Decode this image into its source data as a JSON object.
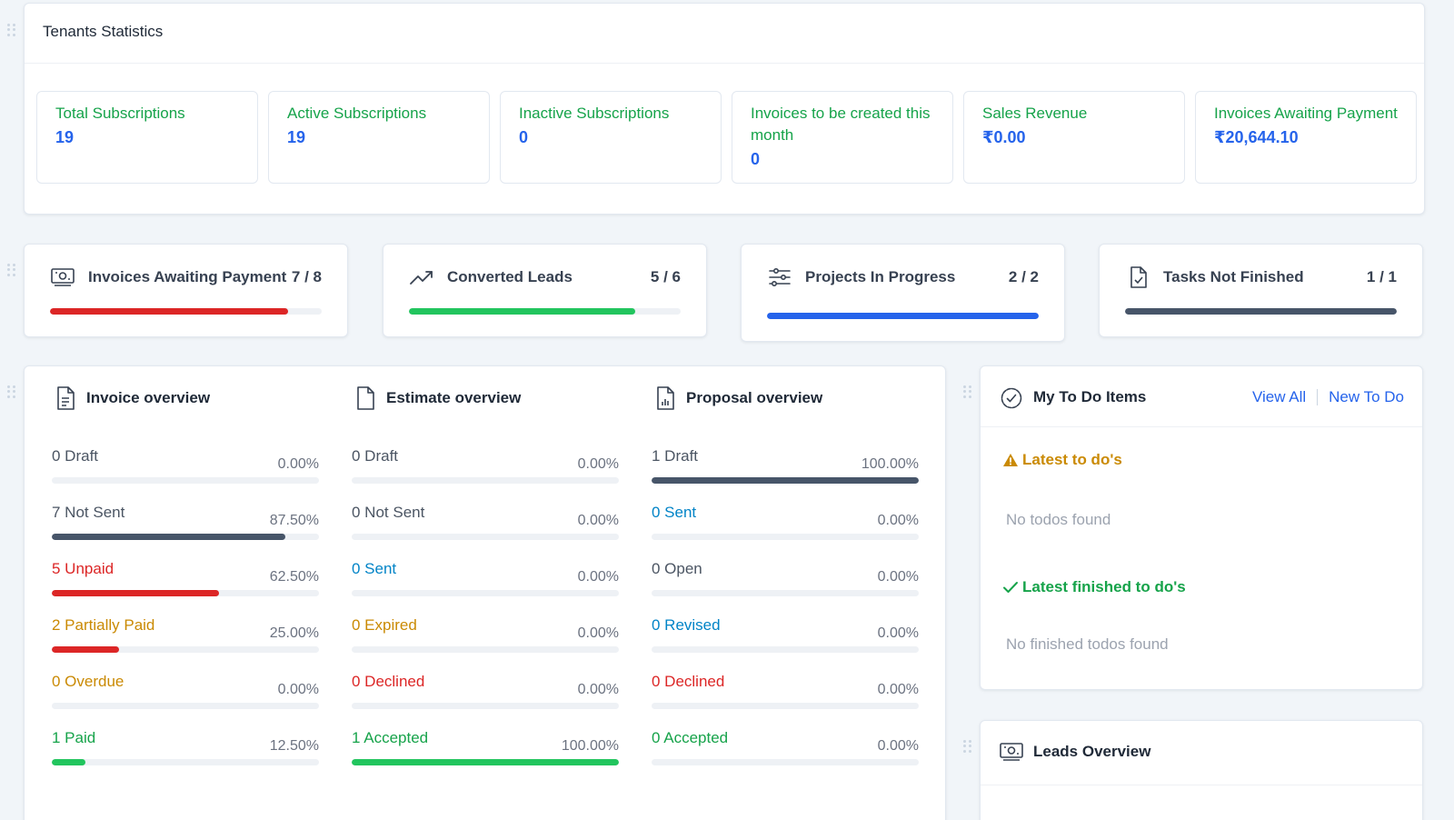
{
  "tenants": {
    "title": "Tenants Statistics",
    "stats": [
      {
        "label": "Total Subscriptions",
        "value": "19"
      },
      {
        "label": "Active Subscriptions",
        "value": "19"
      },
      {
        "label": "Inactive Subscriptions",
        "value": "0"
      },
      {
        "label": "Invoices to be created this month",
        "value": "0"
      },
      {
        "label": "Sales Revenue",
        "value": "₹0.00"
      },
      {
        "label": "Invoices Awaiting Payment",
        "value": "₹20,644.10"
      }
    ]
  },
  "progress_cards": [
    {
      "label": "Invoices Awaiting Payment",
      "count": "7 / 8",
      "fraction": 0.875,
      "color": "#dc2626",
      "icon": "money-icon"
    },
    {
      "label": "Converted Leads",
      "count": "5 / 6",
      "fraction": 0.833,
      "color": "#22c55e",
      "icon": "trending-up-icon"
    },
    {
      "label": "Projects In Progress",
      "count": "2 / 2",
      "fraction": 1.0,
      "color": "#2563eb",
      "icon": "sliders-icon"
    },
    {
      "label": "Tasks Not Finished",
      "count": "1 / 1",
      "fraction": 1.0,
      "color": "#475569",
      "icon": "document-check-icon"
    }
  ],
  "overview": {
    "invoice": {
      "title": "Invoice overview",
      "rows": [
        {
          "label": "0 Draft",
          "pct": "0.00%",
          "fraction": 0,
          "color": "#4b5563",
          "bar": "#475569"
        },
        {
          "label": "7 Not Sent",
          "pct": "87.50%",
          "fraction": 0.875,
          "color": "#4b5563",
          "bar": "#475569"
        },
        {
          "label": "5 Unpaid",
          "pct": "62.50%",
          "fraction": 0.625,
          "color": "#dc2626",
          "bar": "#dc2626"
        },
        {
          "label": "2 Partially Paid",
          "pct": "25.00%",
          "fraction": 0.25,
          "color": "#ca8a04",
          "bar": "#dc2626"
        },
        {
          "label": "0 Overdue",
          "pct": "0.00%",
          "fraction": 0,
          "color": "#ca8a04",
          "bar": "#ca8a04"
        },
        {
          "label": "1 Paid",
          "pct": "12.50%",
          "fraction": 0.125,
          "color": "#16a34a",
          "bar": "#22c55e"
        }
      ]
    },
    "estimate": {
      "title": "Estimate overview",
      "rows": [
        {
          "label": "0 Draft",
          "pct": "0.00%",
          "fraction": 0,
          "color": "#4b5563",
          "bar": "#475569"
        },
        {
          "label": "0 Not Sent",
          "pct": "0.00%",
          "fraction": 0,
          "color": "#4b5563",
          "bar": "#475569"
        },
        {
          "label": "0 Sent",
          "pct": "0.00%",
          "fraction": 0,
          "color": "#0284c7",
          "bar": "#0284c7"
        },
        {
          "label": "0 Expired",
          "pct": "0.00%",
          "fraction": 0,
          "color": "#ca8a04",
          "bar": "#ca8a04"
        },
        {
          "label": "0 Declined",
          "pct": "0.00%",
          "fraction": 0,
          "color": "#dc2626",
          "bar": "#dc2626"
        },
        {
          "label": "1 Accepted",
          "pct": "100.00%",
          "fraction": 1.0,
          "color": "#16a34a",
          "bar": "#22c55e"
        }
      ]
    },
    "proposal": {
      "title": "Proposal overview",
      "rows": [
        {
          "label": "1 Draft",
          "pct": "100.00%",
          "fraction": 1.0,
          "color": "#4b5563",
          "bar": "#475569"
        },
        {
          "label": "0 Sent",
          "pct": "0.00%",
          "fraction": 0,
          "color": "#0284c7",
          "bar": "#0284c7"
        },
        {
          "label": "0 Open",
          "pct": "0.00%",
          "fraction": 0,
          "color": "#4b5563",
          "bar": "#475569"
        },
        {
          "label": "0 Revised",
          "pct": "0.00%",
          "fraction": 0,
          "color": "#0284c7",
          "bar": "#0284c7"
        },
        {
          "label": "0 Declined",
          "pct": "0.00%",
          "fraction": 0,
          "color": "#dc2626",
          "bar": "#dc2626"
        },
        {
          "label": "0 Accepted",
          "pct": "0.00%",
          "fraction": 0,
          "color": "#16a34a",
          "bar": "#22c55e"
        }
      ]
    }
  },
  "todo": {
    "title": "My To Do Items",
    "view_all": "View All",
    "new_todo": "New To Do",
    "latest": "Latest to do's",
    "no_todos": "No todos found",
    "finished": "Latest finished to do's",
    "no_finished": "No finished todos found"
  },
  "leads": {
    "title": "Leads Overview"
  }
}
